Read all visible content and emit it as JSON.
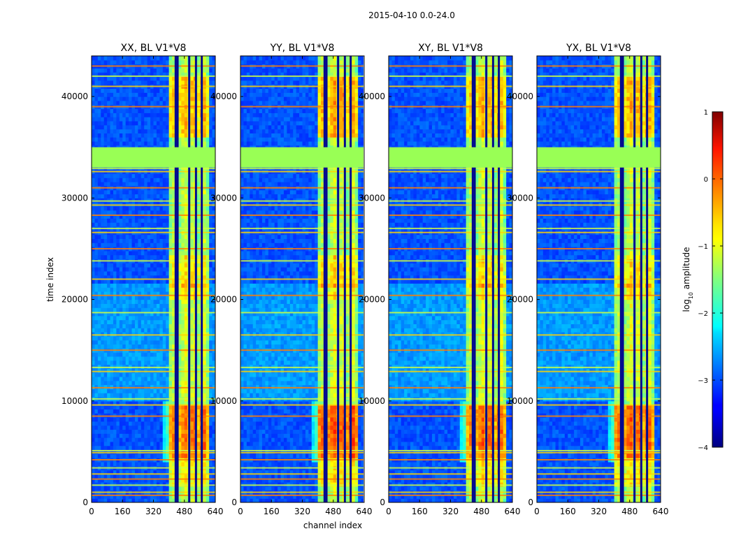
{
  "chart_data": {
    "type": "heatmap",
    "suptitle": "2015-04-10 0.0-24.0",
    "panels": [
      {
        "title": "XX, BL V1*V8",
        "intensity": 0.92
      },
      {
        "title": "YY, BL V1*V8",
        "intensity": 1.08
      },
      {
        "title": "XY, BL V1*V8",
        "intensity": 0.95
      },
      {
        "title": "YX, BL V1*V8",
        "intensity": 0.98
      }
    ],
    "xlabel": "channel index",
    "ylabel": "time index",
    "xlim": [
      0,
      640
    ],
    "ylim": [
      0,
      44000
    ],
    "xticks": [
      0,
      160,
      320,
      480,
      640
    ],
    "xtick_labels": [
      "0",
      "160",
      "320",
      "480",
      "640"
    ],
    "yticks": [
      0,
      10000,
      20000,
      30000,
      40000
    ],
    "ytick_labels": [
      "0",
      "10000",
      "20000",
      "30000",
      "40000"
    ],
    "flagged_time_range": [
      33000,
      35000
    ],
    "flag_color": "#99ff55",
    "rfi_channel_range": [
      405,
      600
    ],
    "dead_channels": [
      435,
      445,
      505,
      540,
      570
    ],
    "horizontal_rfi_rows": [
      700,
      1000,
      1700,
      2300,
      2800,
      3400,
      4200,
      4900,
      5100,
      8500,
      9600,
      10200,
      11300,
      12900,
      13300,
      15000,
      16500,
      18700,
      20400,
      22000,
      23800,
      25000,
      26600,
      27000,
      28300,
      29300,
      29700,
      31000,
      32600,
      32900,
      39000,
      41000,
      42000,
      43000
    ],
    "colorbar": {
      "label_prefix": "log",
      "label_sub": "10",
      "label_suffix": " amplitude",
      "range": [
        -4,
        1
      ],
      "ticks": [
        -4,
        -3,
        -2,
        -1,
        0,
        1
      ],
      "tick_labels": [
        "−4",
        "−3",
        "−2",
        "−1",
        "0",
        "1"
      ],
      "colormap": "jet"
    }
  }
}
